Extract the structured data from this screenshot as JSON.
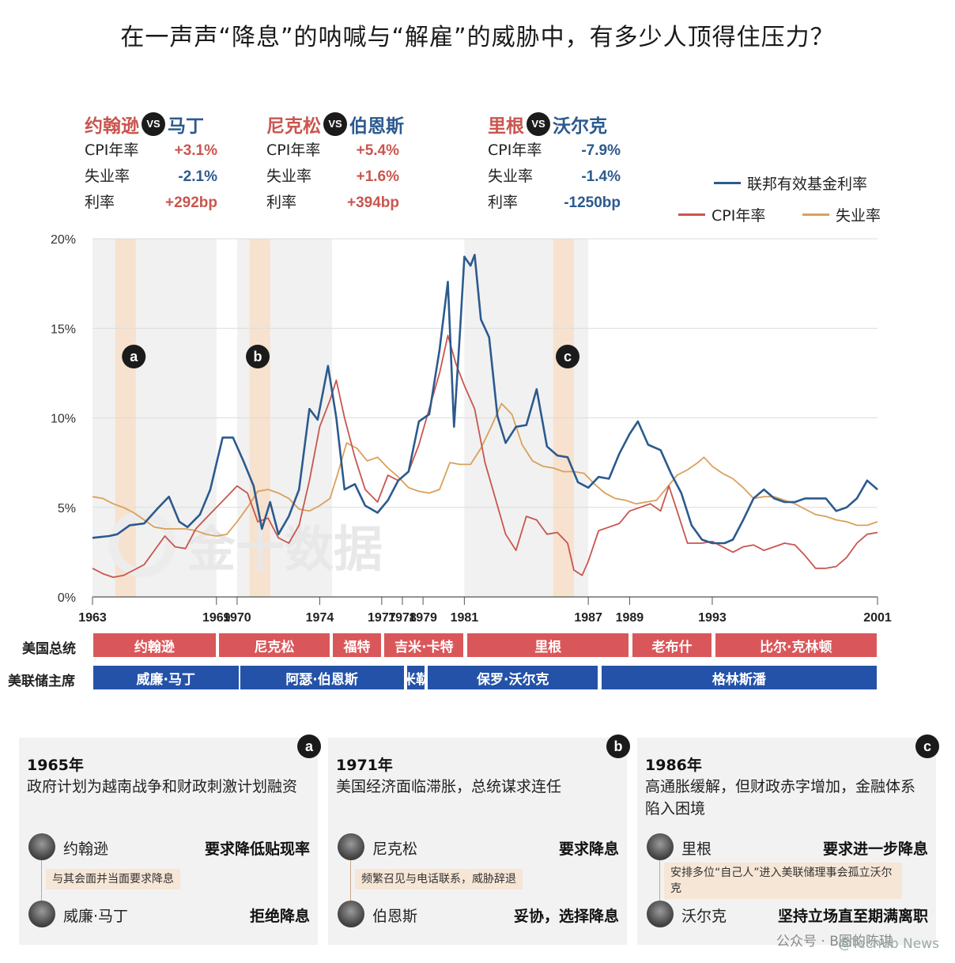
{
  "title": "在一声声“降息”的呐喊与“解雇”的威胁中，有多少人顶得住压力？",
  "vs_blocks": [
    {
      "president": "约翰逊",
      "vs": "VS",
      "fed": "马丁",
      "rows": [
        {
          "label": "CPI年率",
          "value": "+3.1%",
          "tone": "red"
        },
        {
          "label": "失业率",
          "value": "-2.1%",
          "tone": "blue"
        },
        {
          "label": "利率",
          "value": "+292bp",
          "tone": "red"
        }
      ]
    },
    {
      "president": "尼克松",
      "vs": "VS",
      "fed": "伯恩斯",
      "rows": [
        {
          "label": "CPI年率",
          "value": "+5.4%",
          "tone": "red"
        },
        {
          "label": "失业率",
          "value": "+1.6%",
          "tone": "red"
        },
        {
          "label": "利率",
          "value": "+394bp",
          "tone": "red"
        }
      ]
    },
    {
      "president": "里根",
      "vs": "VS",
      "fed": "沃尔克",
      "rows": [
        {
          "label": "CPI年率",
          "value": "-7.9%",
          "tone": "blue"
        },
        {
          "label": "失业率",
          "value": "-1.4%",
          "tone": "blue"
        },
        {
          "label": "利率",
          "value": "-1250bp",
          "tone": "blue"
        }
      ]
    }
  ],
  "legend": {
    "fed_rate": "联邦有效基金利率",
    "cpi": "CPI年率",
    "unemployment": "失业率"
  },
  "colors": {
    "fed_rate": "#2c5a8e",
    "cpi": "#c9564f",
    "unemployment": "#d9a15a",
    "president_bar": "#d9575a",
    "fed_bar": "#2452a8",
    "highlight": "#f6e2cf",
    "shade": "#f1f1f1"
  },
  "chart_data": {
    "type": "line",
    "xlim": [
      1963,
      2001
    ],
    "ylim": [
      0,
      20
    ],
    "y_ticks": [
      "0%",
      "5%",
      "10%",
      "15%",
      "20%"
    ],
    "y_tick_values": [
      0,
      5,
      10,
      15,
      20
    ],
    "x_ticks": [
      "1963",
      "1969",
      "1970",
      "1974",
      "1977",
      "1978",
      "1979",
      "1981",
      "1987",
      "1989",
      "1993",
      "2001"
    ],
    "x_tick_values": [
      1963,
      1969,
      1970,
      1974,
      1977,
      1978,
      1979,
      1981,
      1987,
      1989,
      1993,
      2001
    ],
    "markers": [
      {
        "label": "a",
        "year": 1965
      },
      {
        "label": "b",
        "year": 1971
      },
      {
        "label": "c",
        "year": 1986
      }
    ],
    "highlight_bands": [
      [
        1964.1,
        1965.1
      ],
      [
        1970.6,
        1971.6
      ],
      [
        1985.3,
        1986.3
      ]
    ],
    "shade_bands": [
      [
        1963,
        1969
      ],
      [
        1970,
        1974.6
      ],
      [
        1981,
        1987
      ]
    ],
    "series": [
      {
        "name": "联邦有效基金利率",
        "key": "fed_rate",
        "points": [
          [
            1963,
            3.3
          ],
          [
            1963.8,
            3.4
          ],
          [
            1964.2,
            3.5
          ],
          [
            1964.8,
            4.0
          ],
          [
            1965.5,
            4.1
          ],
          [
            1966.2,
            5.0
          ],
          [
            1966.7,
            5.6
          ],
          [
            1967.2,
            4.2
          ],
          [
            1967.6,
            3.9
          ],
          [
            1968.2,
            4.6
          ],
          [
            1968.7,
            6.0
          ],
          [
            1969.3,
            8.9
          ],
          [
            1969.8,
            8.9
          ],
          [
            1970.3,
            7.6
          ],
          [
            1970.8,
            6.2
          ],
          [
            1971.2,
            3.8
          ],
          [
            1971.6,
            5.3
          ],
          [
            1972.0,
            3.5
          ],
          [
            1972.5,
            4.5
          ],
          [
            1973.0,
            6.0
          ],
          [
            1973.5,
            10.5
          ],
          [
            1973.9,
            9.9
          ],
          [
            1974.4,
            12.9
          ],
          [
            1974.8,
            10.0
          ],
          [
            1975.2,
            6.0
          ],
          [
            1975.7,
            6.3
          ],
          [
            1976.2,
            5.1
          ],
          [
            1976.8,
            4.7
          ],
          [
            1977.3,
            5.4
          ],
          [
            1977.8,
            6.5
          ],
          [
            1978.3,
            7.0
          ],
          [
            1978.8,
            9.8
          ],
          [
            1979.3,
            10.2
          ],
          [
            1979.8,
            13.8
          ],
          [
            1980.2,
            17.6
          ],
          [
            1980.5,
            9.5
          ],
          [
            1980.8,
            15.0
          ],
          [
            1981.0,
            19.0
          ],
          [
            1981.3,
            18.5
          ],
          [
            1981.5,
            19.1
          ],
          [
            1981.8,
            15.5
          ],
          [
            1982.2,
            14.5
          ],
          [
            1982.6,
            10.1
          ],
          [
            1983.0,
            8.6
          ],
          [
            1983.5,
            9.5
          ],
          [
            1984.0,
            9.6
          ],
          [
            1984.5,
            11.6
          ],
          [
            1985.0,
            8.4
          ],
          [
            1985.5,
            7.9
          ],
          [
            1986.0,
            7.8
          ],
          [
            1986.5,
            6.4
          ],
          [
            1987.0,
            6.1
          ],
          [
            1987.5,
            6.7
          ],
          [
            1988.0,
            6.6
          ],
          [
            1988.5,
            8.0
          ],
          [
            1989.0,
            9.1
          ],
          [
            1989.4,
            9.8
          ],
          [
            1989.9,
            8.5
          ],
          [
            1990.5,
            8.2
          ],
          [
            1991.0,
            6.9
          ],
          [
            1991.5,
            5.8
          ],
          [
            1992.0,
            4.0
          ],
          [
            1992.5,
            3.2
          ],
          [
            1993.0,
            3.0
          ],
          [
            1993.6,
            3.0
          ],
          [
            1994.0,
            3.2
          ],
          [
            1994.5,
            4.3
          ],
          [
            1995.0,
            5.5
          ],
          [
            1995.5,
            6.0
          ],
          [
            1996.0,
            5.5
          ],
          [
            1996.5,
            5.3
          ],
          [
            1997.0,
            5.3
          ],
          [
            1997.5,
            5.5
          ],
          [
            1998.0,
            5.5
          ],
          [
            1998.5,
            5.5
          ],
          [
            1999.0,
            4.8
          ],
          [
            1999.5,
            5.0
          ],
          [
            2000.0,
            5.5
          ],
          [
            2000.5,
            6.5
          ],
          [
            2001.0,
            6.0
          ]
        ]
      },
      {
        "name": "CPI年率",
        "key": "cpi",
        "points": [
          [
            1963,
            1.6
          ],
          [
            1963.5,
            1.3
          ],
          [
            1964,
            1.1
          ],
          [
            1964.5,
            1.2
          ],
          [
            1965,
            1.5
          ],
          [
            1965.5,
            1.8
          ],
          [
            1966,
            2.6
          ],
          [
            1966.5,
            3.4
          ],
          [
            1967,
            2.8
          ],
          [
            1967.5,
            2.7
          ],
          [
            1968,
            3.8
          ],
          [
            1968.5,
            4.4
          ],
          [
            1969,
            5.0
          ],
          [
            1969.5,
            5.6
          ],
          [
            1970,
            6.2
          ],
          [
            1970.5,
            5.8
          ],
          [
            1971,
            4.2
          ],
          [
            1971.5,
            4.4
          ],
          [
            1972,
            3.3
          ],
          [
            1972.5,
            3.0
          ],
          [
            1973,
            4.0
          ],
          [
            1973.5,
            6.5
          ],
          [
            1974,
            9.5
          ],
          [
            1974.5,
            11.0
          ],
          [
            1974.8,
            12.1
          ],
          [
            1975.2,
            10.0
          ],
          [
            1975.7,
            7.8
          ],
          [
            1976.2,
            6.0
          ],
          [
            1976.8,
            5.3
          ],
          [
            1977.3,
            6.8
          ],
          [
            1977.8,
            6.5
          ],
          [
            1978.3,
            7.0
          ],
          [
            1978.8,
            8.5
          ],
          [
            1979.3,
            10.5
          ],
          [
            1979.8,
            12.5
          ],
          [
            1980.2,
            14.6
          ],
          [
            1980.6,
            13.0
          ],
          [
            1981.0,
            11.8
          ],
          [
            1981.5,
            10.5
          ],
          [
            1982.0,
            7.5
          ],
          [
            1982.5,
            5.5
          ],
          [
            1983.0,
            3.5
          ],
          [
            1983.5,
            2.6
          ],
          [
            1984.0,
            4.5
          ],
          [
            1984.5,
            4.3
          ],
          [
            1985.0,
            3.5
          ],
          [
            1985.5,
            3.6
          ],
          [
            1986.0,
            3.0
          ],
          [
            1986.3,
            1.5
          ],
          [
            1986.7,
            1.2
          ],
          [
            1987.0,
            2.0
          ],
          [
            1987.5,
            3.7
          ],
          [
            1988.0,
            3.9
          ],
          [
            1988.5,
            4.1
          ],
          [
            1989.0,
            4.8
          ],
          [
            1989.5,
            5.0
          ],
          [
            1990.0,
            5.2
          ],
          [
            1990.5,
            4.8
          ],
          [
            1990.9,
            6.2
          ],
          [
            1991.3,
            4.8
          ],
          [
            1991.8,
            3.0
          ],
          [
            1992.5,
            3.0
          ],
          [
            1993.0,
            3.1
          ],
          [
            1993.5,
            2.8
          ],
          [
            1994.0,
            2.5
          ],
          [
            1994.5,
            2.8
          ],
          [
            1995.0,
            2.9
          ],
          [
            1995.5,
            2.6
          ],
          [
            1996.0,
            2.8
          ],
          [
            1996.5,
            3.0
          ],
          [
            1997.0,
            2.9
          ],
          [
            1997.5,
            2.3
          ],
          [
            1998.0,
            1.6
          ],
          [
            1998.5,
            1.6
          ],
          [
            1999.0,
            1.7
          ],
          [
            1999.5,
            2.2
          ],
          [
            2000.0,
            3.0
          ],
          [
            2000.5,
            3.5
          ],
          [
            2001.0,
            3.6
          ]
        ]
      },
      {
        "name": "失业率",
        "key": "unemployment",
        "points": [
          [
            1963,
            5.6
          ],
          [
            1963.5,
            5.5
          ],
          [
            1964,
            5.2
          ],
          [
            1964.5,
            5.0
          ],
          [
            1965,
            4.7
          ],
          [
            1965.5,
            4.3
          ],
          [
            1966,
            3.9
          ],
          [
            1966.5,
            3.8
          ],
          [
            1967,
            3.8
          ],
          [
            1967.5,
            3.8
          ],
          [
            1968,
            3.7
          ],
          [
            1968.5,
            3.5
          ],
          [
            1969,
            3.4
          ],
          [
            1969.5,
            3.5
          ],
          [
            1970,
            4.2
          ],
          [
            1970.5,
            5.0
          ],
          [
            1971,
            5.9
          ],
          [
            1971.5,
            6.0
          ],
          [
            1972,
            5.8
          ],
          [
            1972.5,
            5.5
          ],
          [
            1973,
            4.9
          ],
          [
            1973.5,
            4.8
          ],
          [
            1974,
            5.1
          ],
          [
            1974.5,
            5.5
          ],
          [
            1974.9,
            7.0
          ],
          [
            1975.3,
            8.6
          ],
          [
            1975.8,
            8.3
          ],
          [
            1976.3,
            7.6
          ],
          [
            1976.8,
            7.8
          ],
          [
            1977.3,
            7.2
          ],
          [
            1977.8,
            6.7
          ],
          [
            1978.3,
            6.1
          ],
          [
            1978.8,
            5.9
          ],
          [
            1979.3,
            5.8
          ],
          [
            1979.8,
            6.0
          ],
          [
            1980.3,
            7.5
          ],
          [
            1980.8,
            7.4
          ],
          [
            1981.3,
            7.4
          ],
          [
            1981.8,
            8.3
          ],
          [
            1982.3,
            9.5
          ],
          [
            1982.8,
            10.8
          ],
          [
            1983.3,
            10.2
          ],
          [
            1983.8,
            8.5
          ],
          [
            1984.3,
            7.6
          ],
          [
            1984.8,
            7.3
          ],
          [
            1985.3,
            7.2
          ],
          [
            1985.8,
            7.0
          ],
          [
            1986.3,
            7.0
          ],
          [
            1986.8,
            6.9
          ],
          [
            1987.3,
            6.3
          ],
          [
            1987.8,
            5.8
          ],
          [
            1988.3,
            5.5
          ],
          [
            1988.8,
            5.4
          ],
          [
            1989.3,
            5.2
          ],
          [
            1989.8,
            5.3
          ],
          [
            1990.3,
            5.4
          ],
          [
            1990.8,
            6.1
          ],
          [
            1991.3,
            6.8
          ],
          [
            1991.8,
            7.1
          ],
          [
            1992.3,
            7.5
          ],
          [
            1992.6,
            7.8
          ],
          [
            1993.0,
            7.3
          ],
          [
            1993.5,
            6.9
          ],
          [
            1994.0,
            6.6
          ],
          [
            1994.5,
            6.1
          ],
          [
            1995.0,
            5.5
          ],
          [
            1995.5,
            5.6
          ],
          [
            1996.0,
            5.6
          ],
          [
            1996.5,
            5.4
          ],
          [
            1997.0,
            5.2
          ],
          [
            1997.5,
            4.9
          ],
          [
            1998.0,
            4.6
          ],
          [
            1998.5,
            4.5
          ],
          [
            1999.0,
            4.3
          ],
          [
            1999.5,
            4.2
          ],
          [
            2000.0,
            4.0
          ],
          [
            2000.5,
            4.0
          ],
          [
            2001.0,
            4.2
          ]
        ]
      }
    ]
  },
  "bars": {
    "president_label": "美国总统",
    "fed_label": "美联储主席",
    "presidents": [
      {
        "name": "约翰逊",
        "start": 1963,
        "end": 1969
      },
      {
        "name": "尼克松",
        "start": 1969.1,
        "end": 1974.5
      },
      {
        "name": "福特",
        "start": 1974.6,
        "end": 1977
      },
      {
        "name": "吉米·卡特",
        "start": 1977.1,
        "end": 1981
      },
      {
        "name": "里根",
        "start": 1981.1,
        "end": 1989
      },
      {
        "name": "老布什",
        "start": 1989.1,
        "end": 1993
      },
      {
        "name": "比尔·克林顿",
        "start": 1993.1,
        "end": 2001.6
      }
    ],
    "feds": [
      {
        "name": "威廉·马丁",
        "start": 1963,
        "end": 1970.1
      },
      {
        "name": "阿瑟·伯恩斯",
        "start": 1970.1,
        "end": 1978.1
      },
      {
        "name": "米勒",
        "start": 1978.2,
        "end": 1979.1
      },
      {
        "name": "保罗·沃尔克",
        "start": 1979.2,
        "end": 1987.5
      },
      {
        "name": "格林斯潘",
        "start": 1987.6,
        "end": 2001
      }
    ]
  },
  "panels": [
    {
      "tag": "a",
      "year": "1965年",
      "desc": "政府计划为越南战争和财政刺激计划融资",
      "president": "约翰逊",
      "president_action": "要求降低贴现率",
      "note": "与其会面并当面要求降息",
      "fed": "威廉·马丁",
      "fed_action": "拒绝降息"
    },
    {
      "tag": "b",
      "year": "1971年",
      "desc": "美国经济面临滞胀，总统谋求连任",
      "president": "尼克松",
      "president_action": "要求降息",
      "note": "频繁召见与电话联系，威胁辞退",
      "fed": "伯恩斯",
      "fed_action": "妥协，选择降息"
    },
    {
      "tag": "c",
      "year": "1986年",
      "desc": "高通胀缓解，但财政赤字增加，金融体系陷入困境",
      "president": "里根",
      "president_action": "要求进一步降息",
      "note": "安排多位“自己人”进入美联储理事会孤立沃尔克",
      "fed": "沃尔克",
      "fed_action": "坚持立场直至期满离职"
    }
  ],
  "watermarks": {
    "chart": "金十数据",
    "footer1": "公众号 · B圈的陈琪",
    "footer2": "@Techub News"
  }
}
